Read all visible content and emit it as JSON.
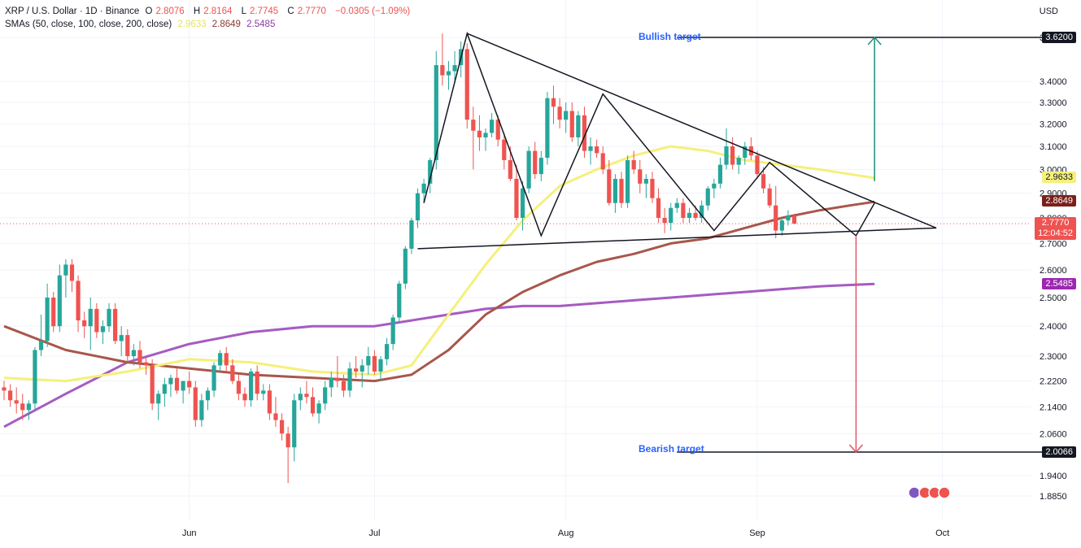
{
  "header": {
    "symbol": "XRP / U.S. Dollar · 1D · Binance",
    "o_label": "O",
    "o_value": "2.8076",
    "h_label": "H",
    "h_value": "2.8164",
    "l_label": "L",
    "l_value": "2.7745",
    "c_label": "C",
    "c_value": "2.7770",
    "change": "−0.0305 (−1.09%)",
    "sma_label": "SMAs (50, close, 100, close, 200, close)",
    "sma50": "2.9633",
    "sma100": "2.8649",
    "sma200": "2.5485"
  },
  "currency": "USD",
  "annotations": {
    "bullish_label": "Bullish target",
    "bullish_value": "3.6200",
    "bearish_label": "Bearish target",
    "bearish_value": "2.0066",
    "price_tag": "2.7770",
    "countdown": "12:04:52"
  },
  "colors": {
    "up": "#26a69a",
    "down": "#ef5350",
    "sma50": "#f5f07a",
    "sma100": "#a8574b",
    "sma200": "#a65bc2",
    "target_text": "#2962ff"
  },
  "chart_data": {
    "type": "candlestick",
    "title": "XRP / U.S. Dollar · 1D · Binance",
    "y_axis_ticks": [
      3.62,
      3.4,
      3.3,
      3.2,
      3.1,
      3.0,
      2.9,
      2.8,
      2.7,
      2.6,
      2.5,
      2.4,
      2.3,
      2.22,
      2.14,
      2.06,
      1.94,
      1.885
    ],
    "y_tick_labels": [
      "3.6200",
      "3.4000",
      "3.3000",
      "3.2000",
      "3.1000",
      "3.0000",
      "2.9000",
      "2.8000",
      "2.7000",
      "2.6000",
      "2.5000",
      "2.4000",
      "2.3000",
      "2.2200",
      "2.1400",
      "2.0600",
      "1.9400",
      "1.8850"
    ],
    "x_tick_labels": [
      {
        "label": "Jun",
        "index": 30
      },
      {
        "label": "Jul",
        "index": 60
      },
      {
        "label": "Aug",
        "index": 91
      },
      {
        "label": "Sep",
        "index": 122
      },
      {
        "label": "Oct",
        "index": 152
      }
    ],
    "candles": [
      {
        "o": 2.2,
        "h": 2.22,
        "l": 2.16,
        "c": 2.19
      },
      {
        "o": 2.19,
        "h": 2.21,
        "l": 2.14,
        "c": 2.16
      },
      {
        "o": 2.16,
        "h": 2.2,
        "l": 2.12,
        "c": 2.15
      },
      {
        "o": 2.15,
        "h": 2.18,
        "l": 2.1,
        "c": 2.13
      },
      {
        "o": 2.13,
        "h": 2.16,
        "l": 2.1,
        "c": 2.15
      },
      {
        "o": 2.15,
        "h": 2.33,
        "l": 2.13,
        "c": 2.32
      },
      {
        "o": 2.32,
        "h": 2.44,
        "l": 2.3,
        "c": 2.35
      },
      {
        "o": 2.35,
        "h": 2.55,
        "l": 2.33,
        "c": 2.5
      },
      {
        "o": 2.5,
        "h": 2.52,
        "l": 2.38,
        "c": 2.4
      },
      {
        "o": 2.4,
        "h": 2.62,
        "l": 2.38,
        "c": 2.58
      },
      {
        "o": 2.58,
        "h": 2.64,
        "l": 2.5,
        "c": 2.62
      },
      {
        "o": 2.62,
        "h": 2.64,
        "l": 2.52,
        "c": 2.56
      },
      {
        "o": 2.56,
        "h": 2.58,
        "l": 2.38,
        "c": 2.42
      },
      {
        "o": 2.42,
        "h": 2.45,
        "l": 2.36,
        "c": 2.4
      },
      {
        "o": 2.4,
        "h": 2.5,
        "l": 2.32,
        "c": 2.46
      },
      {
        "o": 2.46,
        "h": 2.48,
        "l": 2.36,
        "c": 2.38
      },
      {
        "o": 2.38,
        "h": 2.42,
        "l": 2.34,
        "c": 2.4
      },
      {
        "o": 2.4,
        "h": 2.48,
        "l": 2.38,
        "c": 2.46
      },
      {
        "o": 2.46,
        "h": 2.48,
        "l": 2.34,
        "c": 2.35
      },
      {
        "o": 2.35,
        "h": 2.4,
        "l": 2.3,
        "c": 2.37
      },
      {
        "o": 2.37,
        "h": 2.39,
        "l": 2.28,
        "c": 2.3
      },
      {
        "o": 2.3,
        "h": 2.34,
        "l": 2.27,
        "c": 2.32
      },
      {
        "o": 2.32,
        "h": 2.35,
        "l": 2.26,
        "c": 2.28
      },
      {
        "o": 2.28,
        "h": 2.3,
        "l": 2.24,
        "c": 2.27
      },
      {
        "o": 2.27,
        "h": 2.29,
        "l": 2.13,
        "c": 2.15
      },
      {
        "o": 2.15,
        "h": 2.19,
        "l": 2.1,
        "c": 2.18
      },
      {
        "o": 2.18,
        "h": 2.23,
        "l": 2.14,
        "c": 2.21
      },
      {
        "o": 2.21,
        "h": 2.24,
        "l": 2.17,
        "c": 2.23
      },
      {
        "o": 2.23,
        "h": 2.26,
        "l": 2.18,
        "c": 2.19
      },
      {
        "o": 2.19,
        "h": 2.22,
        "l": 2.15,
        "c": 2.22
      },
      {
        "o": 2.22,
        "h": 2.25,
        "l": 2.18,
        "c": 2.2
      },
      {
        "o": 2.2,
        "h": 2.22,
        "l": 2.08,
        "c": 2.1
      },
      {
        "o": 2.1,
        "h": 2.18,
        "l": 2.08,
        "c": 2.16
      },
      {
        "o": 2.16,
        "h": 2.2,
        "l": 2.13,
        "c": 2.19
      },
      {
        "o": 2.19,
        "h": 2.28,
        "l": 2.17,
        "c": 2.27
      },
      {
        "o": 2.27,
        "h": 2.32,
        "l": 2.25,
        "c": 2.31
      },
      {
        "o": 2.31,
        "h": 2.33,
        "l": 2.25,
        "c": 2.27
      },
      {
        "o": 2.27,
        "h": 2.29,
        "l": 2.21,
        "c": 2.22
      },
      {
        "o": 2.22,
        "h": 2.24,
        "l": 2.16,
        "c": 2.18
      },
      {
        "o": 2.18,
        "h": 2.2,
        "l": 2.14,
        "c": 2.16
      },
      {
        "o": 2.16,
        "h": 2.26,
        "l": 2.14,
        "c": 2.25
      },
      {
        "o": 2.25,
        "h": 2.27,
        "l": 2.16,
        "c": 2.18
      },
      {
        "o": 2.18,
        "h": 2.21,
        "l": 2.16,
        "c": 2.19
      },
      {
        "o": 2.19,
        "h": 2.21,
        "l": 2.1,
        "c": 2.12
      },
      {
        "o": 2.12,
        "h": 2.17,
        "l": 2.08,
        "c": 2.1
      },
      {
        "o": 2.1,
        "h": 2.12,
        "l": 2.04,
        "c": 2.06
      },
      {
        "o": 2.06,
        "h": 2.08,
        "l": 1.92,
        "c": 2.02
      },
      {
        "o": 2.02,
        "h": 2.18,
        "l": 1.98,
        "c": 2.16
      },
      {
        "o": 2.16,
        "h": 2.2,
        "l": 2.13,
        "c": 2.18
      },
      {
        "o": 2.18,
        "h": 2.22,
        "l": 2.15,
        "c": 2.17
      },
      {
        "o": 2.17,
        "h": 2.2,
        "l": 2.11,
        "c": 2.12
      },
      {
        "o": 2.12,
        "h": 2.16,
        "l": 2.09,
        "c": 2.15
      },
      {
        "o": 2.15,
        "h": 2.22,
        "l": 2.13,
        "c": 2.2
      },
      {
        "o": 2.2,
        "h": 2.25,
        "l": 2.17,
        "c": 2.23
      },
      {
        "o": 2.23,
        "h": 2.3,
        "l": 2.2,
        "c": 2.22
      },
      {
        "o": 2.22,
        "h": 2.24,
        "l": 2.17,
        "c": 2.19
      },
      {
        "o": 2.19,
        "h": 2.28,
        "l": 2.17,
        "c": 2.26
      },
      {
        "o": 2.26,
        "h": 2.3,
        "l": 2.23,
        "c": 2.25
      },
      {
        "o": 2.25,
        "h": 2.29,
        "l": 2.2,
        "c": 2.27
      },
      {
        "o": 2.27,
        "h": 2.33,
        "l": 2.24,
        "c": 2.3
      },
      {
        "o": 2.3,
        "h": 2.32,
        "l": 2.24,
        "c": 2.25
      },
      {
        "o": 2.25,
        "h": 2.3,
        "l": 2.22,
        "c": 2.29
      },
      {
        "o": 2.29,
        "h": 2.36,
        "l": 2.27,
        "c": 2.34
      },
      {
        "o": 2.34,
        "h": 2.44,
        "l": 2.32,
        "c": 2.43
      },
      {
        "o": 2.43,
        "h": 2.56,
        "l": 2.41,
        "c": 2.55
      },
      {
        "o": 2.55,
        "h": 2.69,
        "l": 2.53,
        "c": 2.68
      },
      {
        "o": 2.68,
        "h": 2.8,
        "l": 2.66,
        "c": 2.79
      },
      {
        "o": 2.79,
        "h": 2.92,
        "l": 2.76,
        "c": 2.9
      },
      {
        "o": 2.9,
        "h": 2.96,
        "l": 2.86,
        "c": 2.94
      },
      {
        "o": 2.94,
        "h": 3.05,
        "l": 2.9,
        "c": 3.04
      },
      {
        "o": 3.04,
        "h": 3.55,
        "l": 3.0,
        "c": 3.48
      },
      {
        "o": 3.48,
        "h": 3.64,
        "l": 3.38,
        "c": 3.43
      },
      {
        "o": 3.43,
        "h": 3.5,
        "l": 3.36,
        "c": 3.45
      },
      {
        "o": 3.45,
        "h": 3.55,
        "l": 3.4,
        "c": 3.48
      },
      {
        "o": 3.48,
        "h": 3.6,
        "l": 3.42,
        "c": 3.56
      },
      {
        "o": 3.56,
        "h": 3.59,
        "l": 3.18,
        "c": 3.22
      },
      {
        "o": 3.22,
        "h": 3.28,
        "l": 3.0,
        "c": 3.17
      },
      {
        "o": 3.17,
        "h": 3.24,
        "l": 3.08,
        "c": 3.14
      },
      {
        "o": 3.14,
        "h": 3.18,
        "l": 3.08,
        "c": 3.16
      },
      {
        "o": 3.16,
        "h": 3.25,
        "l": 3.14,
        "c": 3.22
      },
      {
        "o": 3.22,
        "h": 3.24,
        "l": 3.1,
        "c": 3.13
      },
      {
        "o": 3.13,
        "h": 3.16,
        "l": 3.0,
        "c": 3.04
      },
      {
        "o": 3.04,
        "h": 3.1,
        "l": 2.95,
        "c": 2.96
      },
      {
        "o": 2.96,
        "h": 3.02,
        "l": 2.79,
        "c": 2.8
      },
      {
        "o": 2.8,
        "h": 2.95,
        "l": 2.75,
        "c": 2.92
      },
      {
        "o": 2.92,
        "h": 3.1,
        "l": 2.9,
        "c": 3.08
      },
      {
        "o": 3.08,
        "h": 3.12,
        "l": 2.96,
        "c": 2.98
      },
      {
        "o": 2.98,
        "h": 3.08,
        "l": 2.95,
        "c": 3.05
      },
      {
        "o": 3.05,
        "h": 3.35,
        "l": 3.02,
        "c": 3.32
      },
      {
        "o": 3.32,
        "h": 3.38,
        "l": 3.2,
        "c": 3.28
      },
      {
        "o": 3.28,
        "h": 3.32,
        "l": 3.18,
        "c": 3.22
      },
      {
        "o": 3.22,
        "h": 3.3,
        "l": 3.16,
        "c": 3.26
      },
      {
        "o": 3.26,
        "h": 3.3,
        "l": 3.12,
        "c": 3.14
      },
      {
        "o": 3.14,
        "h": 3.26,
        "l": 3.1,
        "c": 3.24
      },
      {
        "o": 3.24,
        "h": 3.28,
        "l": 3.05,
        "c": 3.08
      },
      {
        "o": 3.08,
        "h": 3.14,
        "l": 3.02,
        "c": 3.1
      },
      {
        "o": 3.1,
        "h": 3.13,
        "l": 3.05,
        "c": 3.07
      },
      {
        "o": 3.07,
        "h": 3.1,
        "l": 2.98,
        "c": 3.0
      },
      {
        "o": 3.0,
        "h": 3.04,
        "l": 2.85,
        "c": 2.86
      },
      {
        "o": 2.86,
        "h": 2.98,
        "l": 2.82,
        "c": 2.96
      },
      {
        "o": 2.96,
        "h": 2.99,
        "l": 2.84,
        "c": 2.86
      },
      {
        "o": 2.86,
        "h": 3.06,
        "l": 2.84,
        "c": 3.04
      },
      {
        "o": 3.04,
        "h": 3.08,
        "l": 2.98,
        "c": 3.0
      },
      {
        "o": 3.0,
        "h": 3.04,
        "l": 2.9,
        "c": 2.94
      },
      {
        "o": 2.94,
        "h": 2.98,
        "l": 2.88,
        "c": 2.96
      },
      {
        "o": 2.96,
        "h": 2.99,
        "l": 2.86,
        "c": 2.88
      },
      {
        "o": 2.88,
        "h": 2.92,
        "l": 2.78,
        "c": 2.8
      },
      {
        "o": 2.8,
        "h": 2.84,
        "l": 2.74,
        "c": 2.78
      },
      {
        "o": 2.78,
        "h": 2.86,
        "l": 2.75,
        "c": 2.84
      },
      {
        "o": 2.84,
        "h": 2.88,
        "l": 2.82,
        "c": 2.86
      },
      {
        "o": 2.86,
        "h": 2.88,
        "l": 2.78,
        "c": 2.8
      },
      {
        "o": 2.8,
        "h": 2.84,
        "l": 2.78,
        "c": 2.82
      },
      {
        "o": 2.82,
        "h": 2.85,
        "l": 2.79,
        "c": 2.8
      },
      {
        "o": 2.8,
        "h": 2.87,
        "l": 2.78,
        "c": 2.85
      },
      {
        "o": 2.85,
        "h": 2.93,
        "l": 2.83,
        "c": 2.92
      },
      {
        "o": 2.92,
        "h": 2.96,
        "l": 2.88,
        "c": 2.94
      },
      {
        "o": 2.94,
        "h": 3.05,
        "l": 2.92,
        "c": 3.02
      },
      {
        "o": 3.02,
        "h": 3.18,
        "l": 3.0,
        "c": 3.1
      },
      {
        "o": 3.1,
        "h": 3.14,
        "l": 3.0,
        "c": 3.02
      },
      {
        "o": 3.02,
        "h": 3.06,
        "l": 2.98,
        "c": 3.05
      },
      {
        "o": 3.05,
        "h": 3.12,
        "l": 3.02,
        "c": 3.1
      },
      {
        "o": 3.1,
        "h": 3.14,
        "l": 3.04,
        "c": 3.06
      },
      {
        "o": 3.06,
        "h": 3.08,
        "l": 2.96,
        "c": 2.98
      },
      {
        "o": 2.98,
        "h": 3.01,
        "l": 2.9,
        "c": 2.92
      },
      {
        "o": 2.92,
        "h": 2.94,
        "l": 2.84,
        "c": 2.85
      },
      {
        "o": 2.85,
        "h": 2.93,
        "l": 2.72,
        "c": 2.75
      },
      {
        "o": 2.75,
        "h": 2.8,
        "l": 2.73,
        "c": 2.79
      },
      {
        "o": 2.79,
        "h": 2.83,
        "l": 2.77,
        "c": 2.81
      },
      {
        "o": 2.8076,
        "h": 2.8164,
        "l": 2.7745,
        "c": 2.777
      }
    ],
    "sma50": [
      [
        0,
        2.23
      ],
      [
        10,
        2.22
      ],
      [
        20,
        2.25
      ],
      [
        30,
        2.29
      ],
      [
        40,
        2.28
      ],
      [
        50,
        2.25
      ],
      [
        60,
        2.24
      ],
      [
        66,
        2.27
      ],
      [
        72,
        2.44
      ],
      [
        78,
        2.62
      ],
      [
        84,
        2.79
      ],
      [
        90,
        2.93
      ],
      [
        96,
        3.0
      ],
      [
        102,
        3.06
      ],
      [
        108,
        3.1
      ],
      [
        114,
        3.08
      ],
      [
        120,
        3.04
      ],
      [
        126,
        3.02
      ],
      [
        132,
        3.0
      ],
      [
        137,
        2.98
      ],
      [
        141,
        2.9633
      ]
    ],
    "sma100": [
      [
        0,
        2.4
      ],
      [
        10,
        2.32
      ],
      [
        20,
        2.28
      ],
      [
        30,
        2.26
      ],
      [
        40,
        2.24
      ],
      [
        50,
        2.23
      ],
      [
        60,
        2.22
      ],
      [
        66,
        2.24
      ],
      [
        72,
        2.32
      ],
      [
        78,
        2.44
      ],
      [
        84,
        2.52
      ],
      [
        90,
        2.58
      ],
      [
        96,
        2.63
      ],
      [
        102,
        2.66
      ],
      [
        108,
        2.7
      ],
      [
        114,
        2.72
      ],
      [
        120,
        2.76
      ],
      [
        126,
        2.8
      ],
      [
        132,
        2.83
      ],
      [
        137,
        2.85
      ],
      [
        141,
        2.8649
      ]
    ],
    "sma200": [
      [
        0,
        2.08
      ],
      [
        10,
        2.18
      ],
      [
        20,
        2.28
      ],
      [
        30,
        2.34
      ],
      [
        40,
        2.38
      ],
      [
        50,
        2.4
      ],
      [
        60,
        2.4
      ],
      [
        66,
        2.42
      ],
      [
        72,
        2.44
      ],
      [
        78,
        2.46
      ],
      [
        84,
        2.47
      ],
      [
        90,
        2.47
      ],
      [
        96,
        2.48
      ],
      [
        102,
        2.49
      ],
      [
        108,
        2.5
      ],
      [
        114,
        2.51
      ],
      [
        120,
        2.52
      ],
      [
        126,
        2.53
      ],
      [
        132,
        2.54
      ],
      [
        137,
        2.545
      ],
      [
        141,
        2.5485
      ]
    ],
    "drawings": {
      "triangle_upper": [
        [
          75,
          3.64
        ],
        [
          151,
          2.76
        ]
      ],
      "triangle_lower": [
        [
          67,
          2.68
        ],
        [
          151,
          2.76
        ]
      ],
      "w_pattern": [
        [
          68,
          2.86
        ],
        [
          75,
          3.64
        ],
        [
          87,
          2.73
        ],
        [
          97,
          3.34
        ],
        [
          115,
          2.75
        ],
        [
          124,
          3.03
        ],
        [
          138,
          2.73
        ],
        [
          141,
          2.86
        ]
      ],
      "bullish_line": [
        [
          109,
          3.62
        ],
        [
          169,
          3.62
        ]
      ],
      "bearish_line": [
        [
          109,
          2.0066
        ],
        [
          169,
          2.0066
        ]
      ],
      "up_arrow": [
        [
          141,
          2.95
        ],
        [
          141,
          3.62
        ]
      ],
      "down_arrow": [
        [
          138,
          2.73
        ],
        [
          138,
          2.0066
        ]
      ]
    }
  }
}
